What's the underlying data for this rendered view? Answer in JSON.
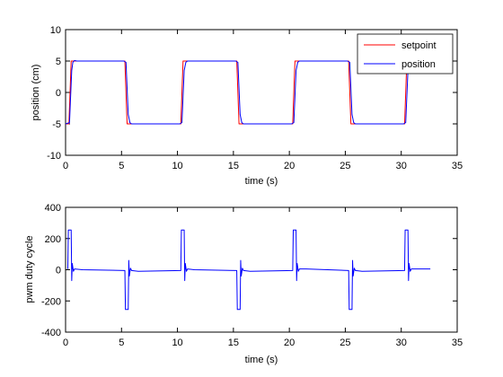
{
  "chart_data": [
    {
      "type": "line",
      "title": "",
      "xlabel": "time (s)",
      "ylabel": "position (cm)",
      "xlim": [
        0,
        35
      ],
      "ylim": [
        -10,
        10
      ],
      "xticks": [
        0,
        5,
        10,
        15,
        20,
        25,
        30,
        35
      ],
      "yticks": [
        -10,
        -5,
        0,
        5,
        10
      ],
      "grid": false,
      "legend": "top-right",
      "series": [
        {
          "name": "setpoint",
          "color": "#ff0000",
          "x": [
            0,
            0.3,
            0.5,
            5.2,
            5.3,
            5.5,
            10.2,
            10.3,
            10.5,
            15.2,
            15.3,
            15.5,
            20.2,
            20.3,
            20.5,
            25.2,
            25.3,
            25.5,
            30.2,
            30.3,
            30.5
          ],
          "y": [
            -5,
            -5,
            5,
            5,
            5,
            -5,
            -5,
            -5,
            5,
            5,
            5,
            -5,
            -5,
            -5,
            5,
            5,
            5,
            -5,
            -5,
            -5,
            5
          ]
        },
        {
          "name": "position",
          "color": "#0000ff",
          "x": [
            0.0,
            0.35,
            0.55,
            0.65,
            0.8,
            1.0,
            5.2,
            5.4,
            5.6,
            5.75,
            5.9,
            10.2,
            10.4,
            10.6,
            10.75,
            10.9,
            15.2,
            15.4,
            15.6,
            15.75,
            15.9,
            20.2,
            20.4,
            20.6,
            20.75,
            20.9,
            25.2,
            25.4,
            25.6,
            25.75,
            25.9,
            30.2,
            30.4,
            30.6,
            30.75,
            30.9,
            32.6
          ],
          "y": [
            -5.0,
            -4.8,
            3.5,
            4.8,
            5.1,
            5.0,
            5.0,
            4.8,
            -3.5,
            -4.8,
            -5.0,
            -5.0,
            -4.8,
            3.5,
            4.8,
            5.0,
            5.0,
            4.8,
            -3.5,
            -4.8,
            -5.0,
            -5.0,
            -4.8,
            3.5,
            4.8,
            5.0,
            5.0,
            4.8,
            -3.5,
            -4.8,
            -5.0,
            -5.0,
            -4.8,
            3.5,
            4.8,
            5.0,
            5.0
          ]
        }
      ]
    },
    {
      "type": "line",
      "title": "",
      "xlabel": "time (s)",
      "ylabel": "pwm duty cycle",
      "xlim": [
        0,
        35
      ],
      "ylim": [
        -400,
        400
      ],
      "xticks": [
        0,
        5,
        10,
        15,
        20,
        25,
        30,
        35
      ],
      "yticks": [
        -400,
        -200,
        0,
        200,
        400
      ],
      "grid": false,
      "series": [
        {
          "color": "#0000ff",
          "x": [
            0.2,
            0.25,
            0.5,
            0.55,
            0.6,
            0.7,
            0.8,
            1.5,
            5.3,
            5.35,
            5.6,
            5.65,
            5.7,
            5.8,
            5.9,
            6.5,
            10.3,
            10.35,
            10.6,
            10.65,
            10.7,
            10.8,
            10.9,
            11.5,
            15.3,
            15.35,
            15.6,
            15.65,
            15.7,
            15.8,
            15.9,
            16.5,
            20.3,
            20.35,
            20.6,
            20.65,
            20.7,
            20.8,
            20.9,
            21.5,
            25.3,
            25.35,
            25.6,
            25.65,
            25.7,
            25.8,
            25.9,
            26.5,
            30.3,
            30.35,
            30.6,
            30.65,
            30.7,
            30.8,
            30.9,
            32.6
          ],
          "y": [
            5,
            255,
            255,
            -70,
            40,
            -10,
            5,
            0,
            -5,
            -255,
            -255,
            60,
            -40,
            10,
            -5,
            -10,
            -5,
            255,
            255,
            -70,
            40,
            -10,
            5,
            0,
            -5,
            -255,
            -255,
            60,
            -40,
            10,
            -5,
            -10,
            -5,
            255,
            255,
            -70,
            40,
            -10,
            5,
            5,
            -5,
            -255,
            -255,
            60,
            -40,
            10,
            -5,
            -10,
            -5,
            255,
            255,
            -70,
            40,
            -10,
            5,
            5
          ]
        }
      ]
    }
  ]
}
